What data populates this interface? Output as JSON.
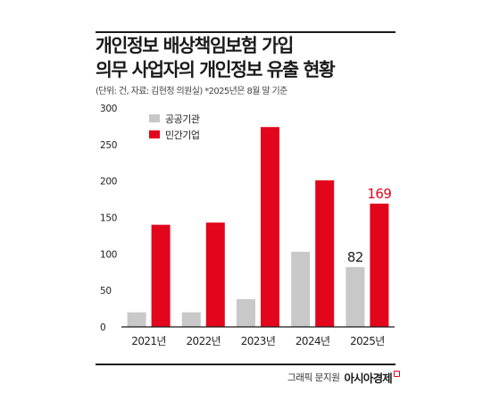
{
  "header": {
    "title_line1": "개인정보 배상책임보험 가입",
    "title_line2": "의무 사업자의 개인정보 유출 현황",
    "subtitle": "(단위: 건, 자료: 김현정 의원실) *2025년은 8월 말 기준"
  },
  "footer": {
    "credit": "그래픽 문지원",
    "brand": "아시아경제"
  },
  "colors": {
    "public": "#c8c8c8",
    "private": "#e3051b",
    "axis_text": "#222222",
    "highlight_label": "#e3051b"
  },
  "chart_data": {
    "type": "bar",
    "categories": [
      "2021년",
      "2022년",
      "2023년",
      "2024년",
      "2025년"
    ],
    "series": [
      {
        "name": "공공기관",
        "values": [
          20,
          20,
          38,
          103,
          82
        ]
      },
      {
        "name": "민간기업",
        "values": [
          140,
          143,
          274,
          201,
          169
        ]
      }
    ],
    "data_labels": {
      "series_0_index_4": "82",
      "series_1_index_4": "169"
    },
    "ylim": [
      0,
      300
    ],
    "yticks": [
      "0",
      "50",
      "100",
      "150",
      "200",
      "250",
      "300"
    ],
    "legend_position": "top-left",
    "grid": false
  }
}
